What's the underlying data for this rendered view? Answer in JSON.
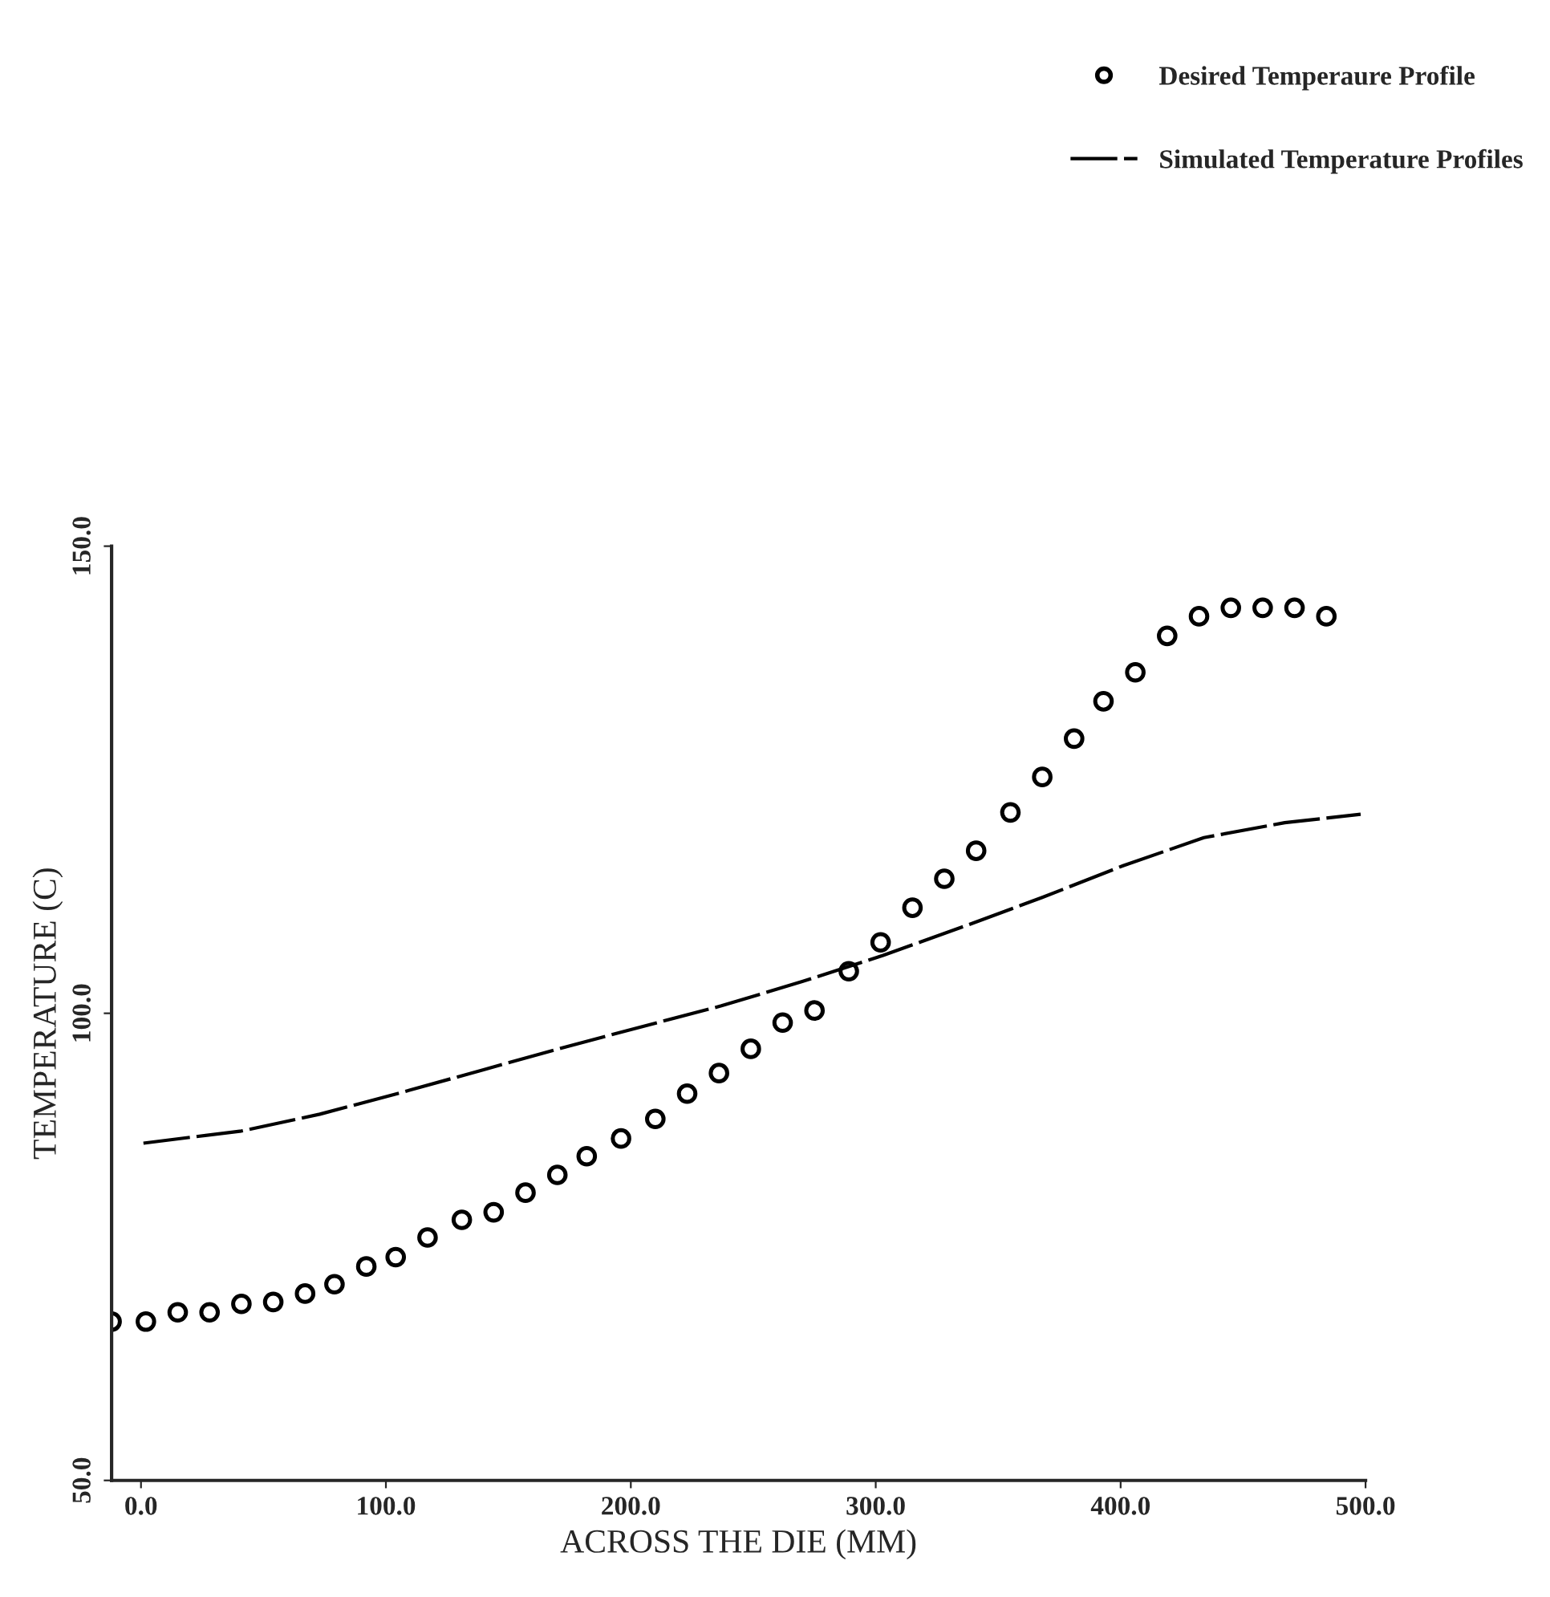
{
  "chart_data": {
    "type": "line",
    "xlabel": "ACROSS THE DIE (MM)",
    "ylabel": "TEMPERATURE (C)",
    "xlim": [
      -12,
      500
    ],
    "ylim": [
      50,
      150
    ],
    "xticks": [
      {
        "value": 0,
        "label": "0.0"
      },
      {
        "value": 100,
        "label": "100.0"
      },
      {
        "value": 200,
        "label": "200.0"
      },
      {
        "value": 300,
        "label": "300.0"
      },
      {
        "value": 400,
        "label": "400.0"
      },
      {
        "value": 500,
        "label": "500.0"
      }
    ],
    "yticks": [
      {
        "value": 50,
        "label": "50.0"
      },
      {
        "value": 100,
        "label": "100.0"
      },
      {
        "value": 150,
        "label": "150.0"
      }
    ],
    "grid": false,
    "legend": "top right",
    "series": [
      {
        "name": "Desired Temperaure Profile",
        "type": "scatter",
        "marker": "circle",
        "color": "#000000",
        "x": [
          -12,
          2,
          15,
          28,
          41,
          54,
          67,
          79,
          92,
          104,
          117,
          131,
          144,
          157,
          170,
          182,
          196,
          210,
          223,
          236,
          249,
          262,
          275,
          289,
          302,
          315,
          328,
          341,
          355,
          368,
          381,
          393,
          406,
          419,
          432,
          445,
          458,
          471,
          484
        ],
        "values": [
          67,
          67,
          68,
          68,
          68.9,
          69.1,
          70,
          71,
          72.9,
          73.9,
          76,
          77.9,
          78.7,
          80.8,
          82.7,
          84.7,
          86.6,
          88.7,
          91.4,
          93.6,
          96.2,
          99,
          100.3,
          104.5,
          107.6,
          111.3,
          114.4,
          117.4,
          121.5,
          125.3,
          129.4,
          133.4,
          136.5,
          140.4,
          142.5,
          143.4,
          143.4,
          143.4,
          142.5
        ]
      },
      {
        "name": "Simulated Temperature Profiles",
        "type": "line",
        "line_style": "dashed",
        "color": "#000000",
        "x": [
          1,
          41,
          73,
          106,
          139,
          172,
          205,
          237,
          270,
          303,
          336,
          368,
          401,
          434,
          467,
          498
        ],
        "values": [
          86.1,
          87.4,
          89.2,
          91.5,
          93.9,
          96.3,
          98.6,
          100.8,
          103.4,
          106.2,
          109.3,
          112.4,
          115.8,
          118.8,
          120.4,
          121.3
        ]
      }
    ]
  }
}
